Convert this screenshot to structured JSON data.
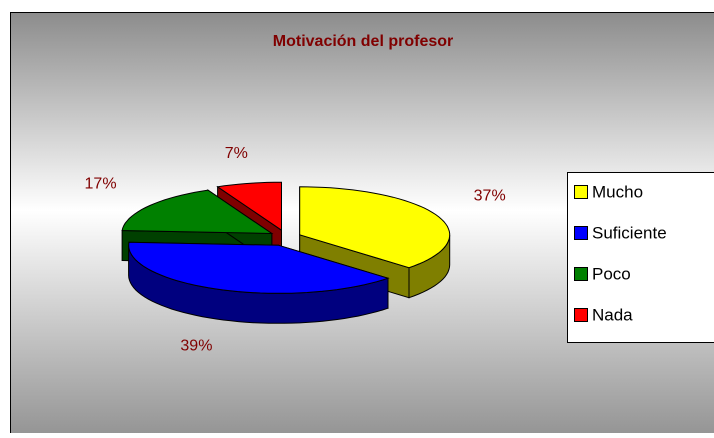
{
  "chart_data": {
    "type": "pie",
    "title": "Motivación del profesor",
    "categories": [
      "Mucho",
      "Suficiente",
      "Poco",
      "Nada"
    ],
    "values": [
      37,
      39,
      17,
      7
    ],
    "value_labels": [
      "37%",
      "39%",
      "17%",
      "7%"
    ],
    "colors": [
      "#ffff00",
      "#0000ff",
      "#008000",
      "#ff0000"
    ],
    "legend": "right"
  }
}
